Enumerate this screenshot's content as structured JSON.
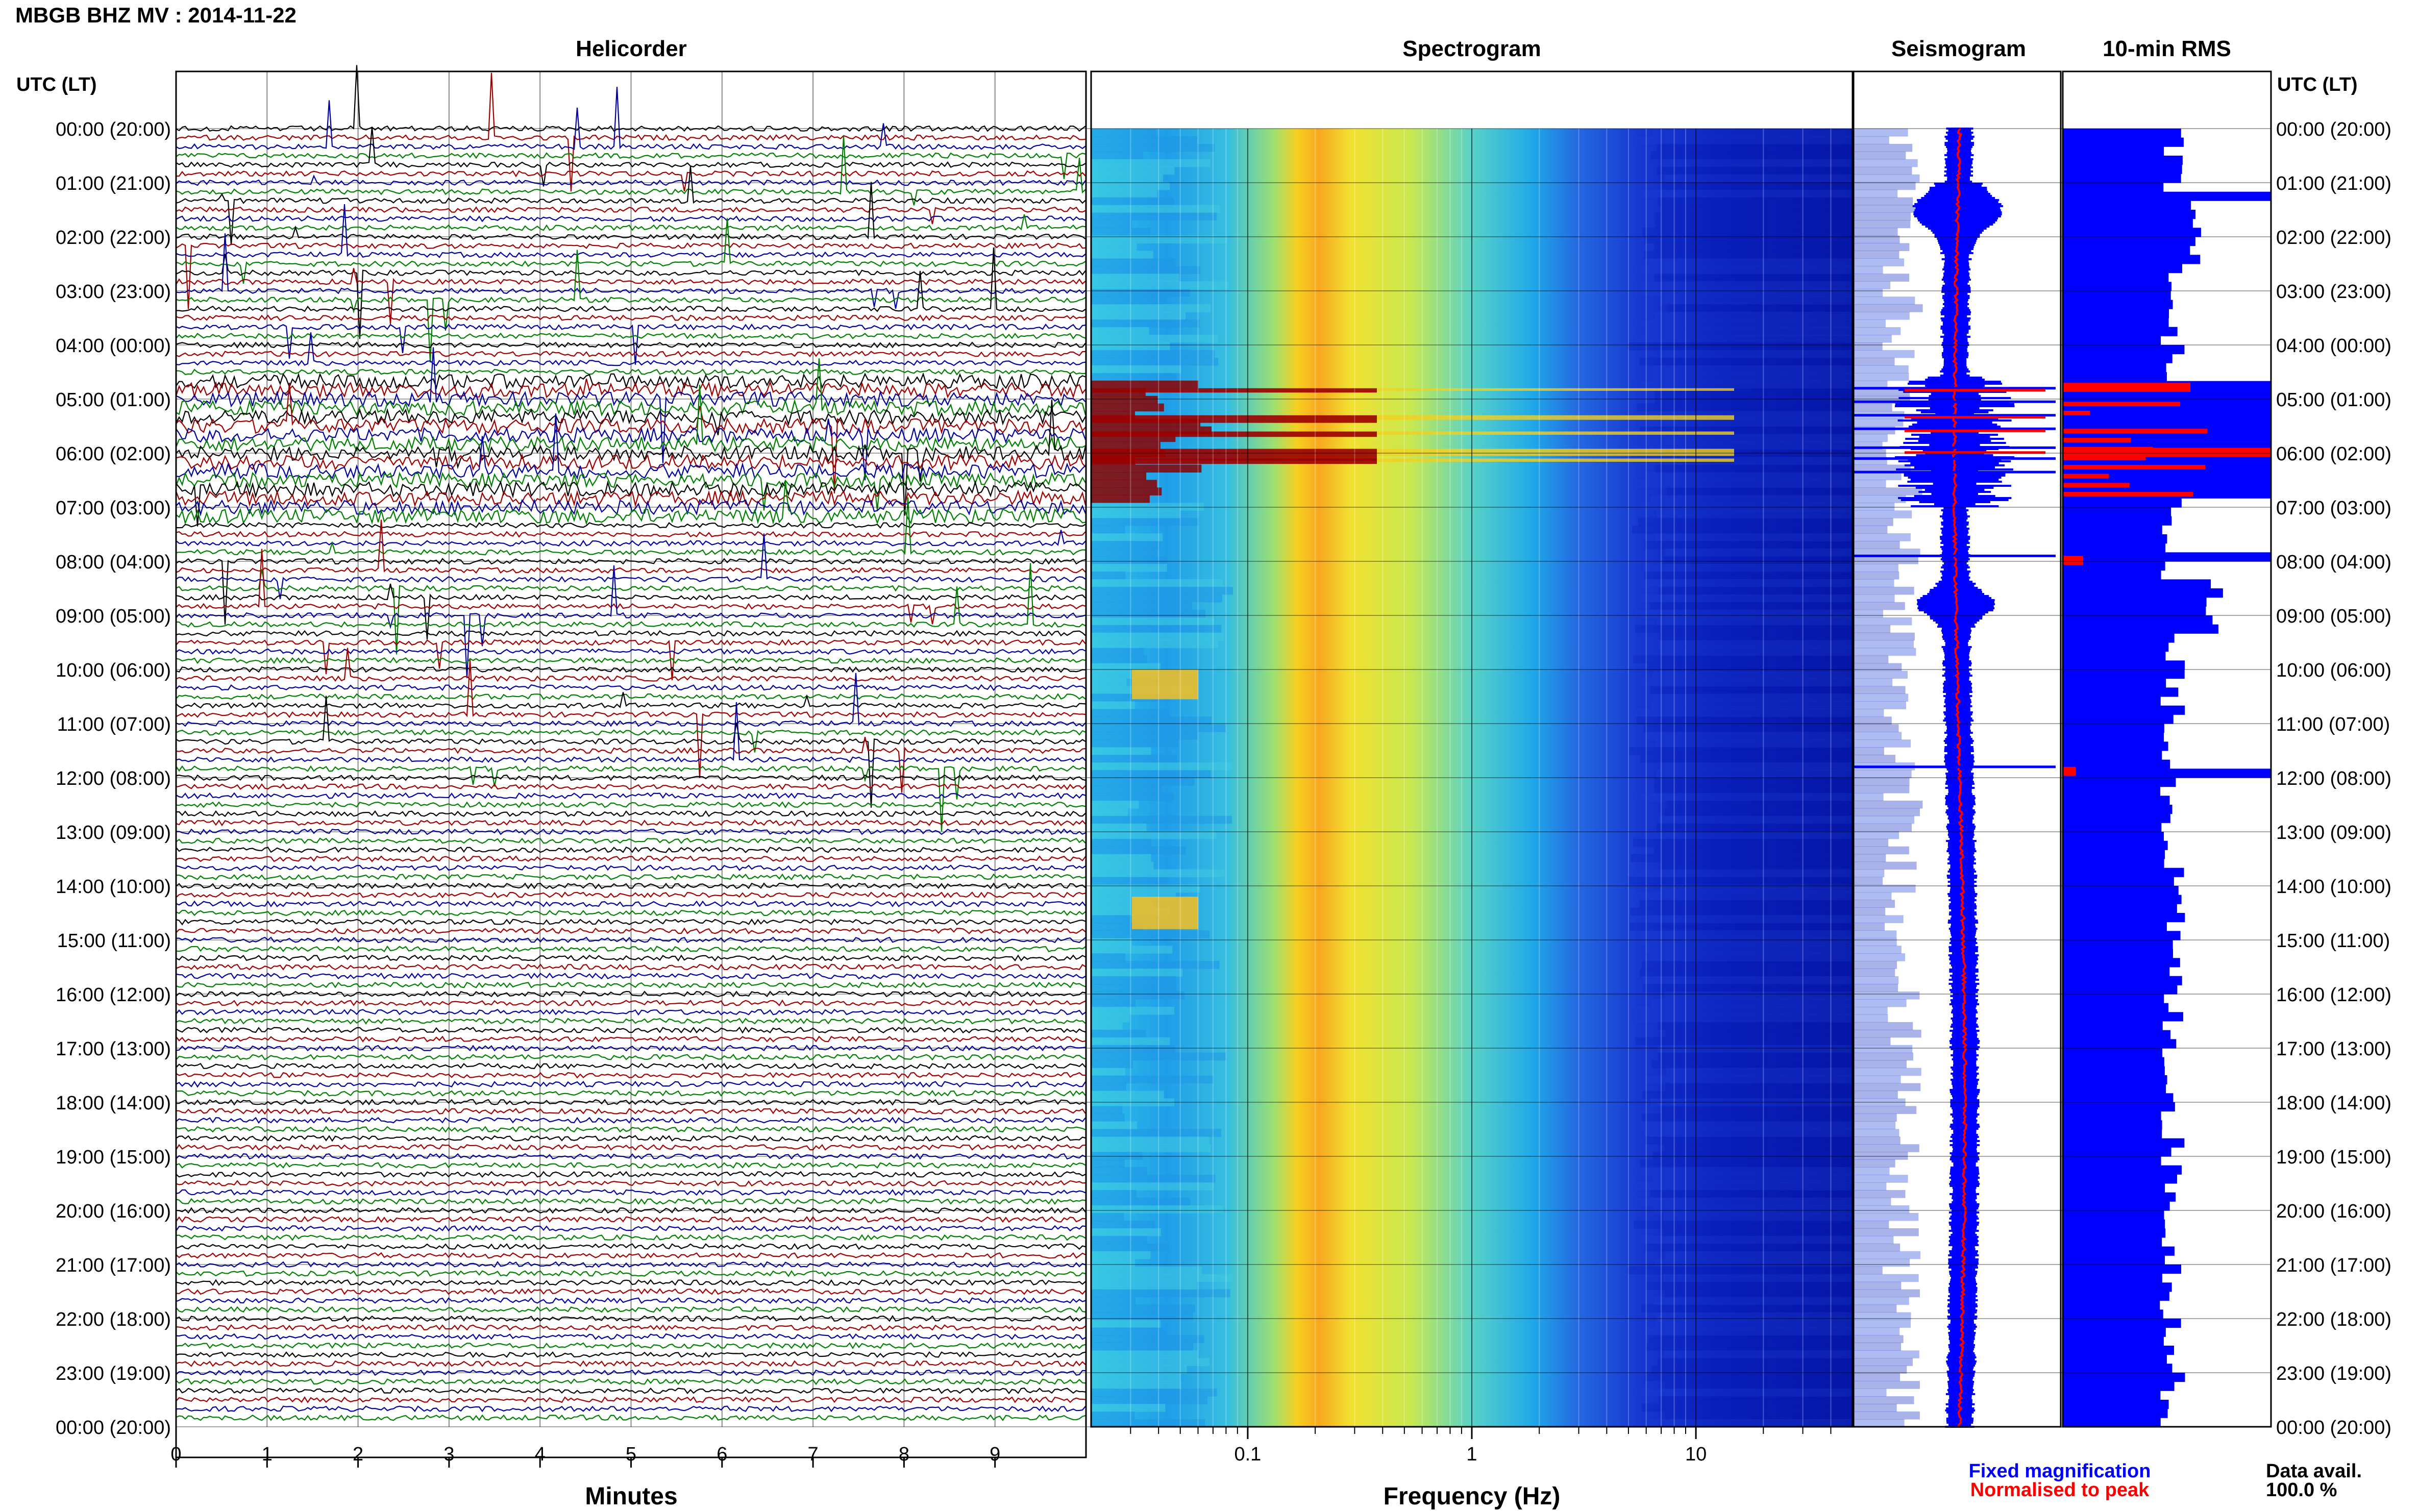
{
  "title": "MBGB BHZ MV : 2014-11-22",
  "chart_data": [
    {
      "type": "line",
      "panel": "helicorder",
      "title": "Helicorder",
      "xlabel": "Minutes",
      "x_ticks": [
        "0",
        "1",
        "2",
        "3",
        "4",
        "5",
        "6",
        "7",
        "8",
        "9"
      ],
      "xlim": [
        0,
        10
      ],
      "y_axis_label": "UTC (LT)",
      "y_ticks": [
        "00:00 (20:00)",
        "01:00 (21:00)",
        "02:00 (22:00)",
        "03:00 (23:00)",
        "04:00 (00:00)",
        "05:00 (01:00)",
        "06:00 (02:00)",
        "07:00 (03:00)",
        "08:00 (04:00)",
        "09:00 (05:00)",
        "10:00 (06:00)",
        "11:00 (07:00)",
        "12:00 (08:00)",
        "13:00 (09:00)",
        "14:00 (10:00)",
        "15:00 (11:00)",
        "16:00 (12:00)",
        "17:00 (13:00)",
        "18:00 (14:00)",
        "19:00 (15:00)",
        "20:00 (16:00)",
        "21:00 (17:00)",
        "22:00 (18:00)",
        "23:00 (19:00)",
        "00:00 (20:00)"
      ],
      "trace_colors": [
        "#000000",
        "#a00000",
        "#0000a0",
        "#008000"
      ],
      "ylim_hours": [
        0,
        24
      ]
    },
    {
      "type": "heatmap",
      "panel": "spectrogram",
      "title": "Spectrogram",
      "xlabel": "Frequency (Hz)",
      "x_scale": "log",
      "x_ticks": [
        "0.1",
        "1",
        "10"
      ],
      "xlim": [
        0.02,
        50
      ],
      "ylim_hours": [
        0,
        24
      ],
      "colormap": "jet"
    },
    {
      "type": "line",
      "panel": "seismogram",
      "title": "Seismogram",
      "ylim_hours": [
        0,
        24
      ],
      "series": [
        {
          "name": "Fixed magnification",
          "color": "#0000ff"
        },
        {
          "name": "Normalised to peak",
          "color": "#ff0000"
        }
      ]
    },
    {
      "type": "bar",
      "panel": "rms",
      "title": "10-min RMS",
      "ylim_hours": [
        0,
        24
      ],
      "bar_color": "#0000ff",
      "highlight_color": "#ff0000",
      "high_hours": [
        4.6,
        6.8
      ],
      "spike_hours": [
        1.2,
        4.7,
        5.9,
        7.9,
        11.8
      ]
    }
  ],
  "footer": {
    "legend_fixed": "Fixed magnification",
    "legend_normalised": "Normalised to peak",
    "data_avail_label": "Data avail.",
    "data_avail_value": "100.0 %"
  },
  "colors": {
    "fixed": "#0000ff",
    "normalised": "#ff0000"
  }
}
